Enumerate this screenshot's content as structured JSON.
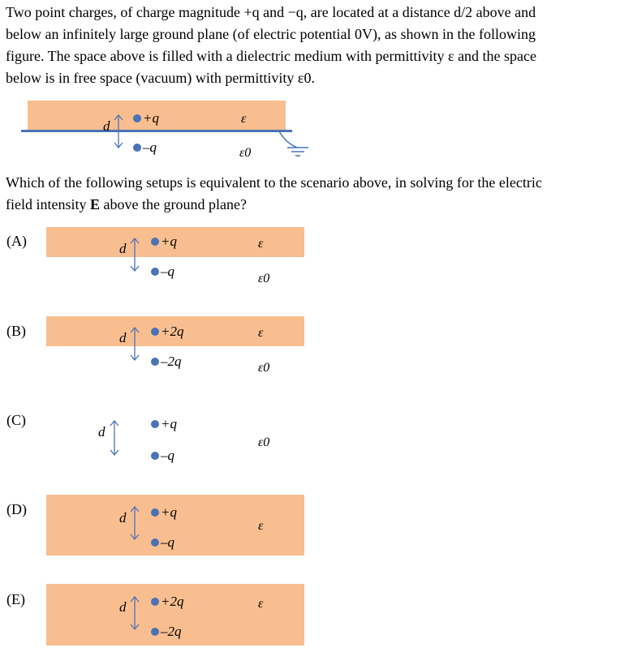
{
  "problem": {
    "line1": "Two point charges, of charge magnitude +q and −q, are located at a distance d/2 above and",
    "line2": "below an infinitely large ground plane (of electric potential 0V), as shown in the following",
    "line3": "figure. The space above is filled with a dielectric medium with permittivity ε and the space",
    "line4": "below is in free space (vacuum) with permittivity ε0."
  },
  "question": {
    "line1": "Which of the following setups is equivalent to the scenario above, in solving for the electric",
    "line2_pre": "field intensity ",
    "line2_bold": "E",
    "line2_post": " above the ground plane?"
  },
  "symbols": {
    "d": "d",
    "plus_q": "+q",
    "minus_q": "–q",
    "plus_2q": "+2q",
    "minus_2q": "–2q",
    "eps": "ε",
    "eps0": "ε0"
  },
  "options": {
    "a": "(A)",
    "b": "(B)",
    "c": "(C)",
    "d": "(D)",
    "e": "(E)"
  },
  "colors": {
    "dielectric": "#f9be8f",
    "charge": "#4a72b5",
    "plane": "#4a72b5"
  }
}
